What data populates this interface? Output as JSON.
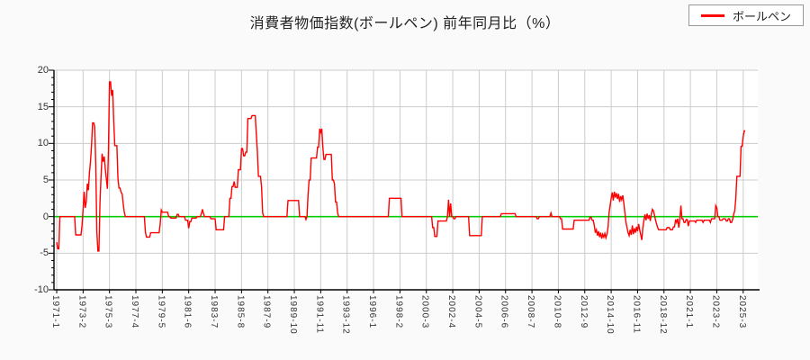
{
  "header": {
    "title": "消費者物価指数(ボールペン) 前年同月比（%）"
  },
  "legend": {
    "label": "ボールペン",
    "line_color": "#ff0000"
  },
  "colors": {
    "series_line": "#ff0000",
    "zero_line": "#00cc00",
    "grid": "#cccccc",
    "axis": "#000000",
    "plot_background": "#ffffff",
    "page_background": "#fafafa"
  },
  "chart_data": {
    "type": "line",
    "title": "消費者物価指数(ボールペン) 前年同月比（%）",
    "series_name": "ボールペン",
    "unit": "%",
    "x_start": "1971-1",
    "x_end": "2025-5",
    "x_tick_interval_months": 25,
    "x_tick_labels": [
      "1971-1",
      "1973-2",
      "1975-3",
      "1977-4",
      "1979-5",
      "1981-6",
      "1983-7",
      "1985-8",
      "1987-9",
      "1989-10",
      "1991-11",
      "1993-12",
      "1996-1",
      "1998-2",
      "2000-3",
      "2002-4",
      "2004-5",
      "2006-6",
      "2008-7",
      "2010-8",
      "2012-9",
      "2014-10",
      "2016-11",
      "2018-12",
      "2021-1",
      "2023-2",
      "2025-3"
    ],
    "ylim": [
      -10,
      20
    ],
    "y_ticks": [
      -10,
      -5,
      0,
      5,
      10,
      15,
      20
    ],
    "y_minor_tick_step": 1,
    "grid": true,
    "legend_position": "top-right",
    "value_encoding": "step_changes: each [month, value] sets the series value from that month until the next entry",
    "changes": [
      [
        "1971-1",
        -3.5
      ],
      [
        "1971-2",
        -4.4
      ],
      [
        "1971-4",
        0
      ],
      [
        "1972-7",
        -2.5
      ],
      [
        "1973-1",
        -1.2
      ],
      [
        "1973-2",
        1.0
      ],
      [
        "1973-3",
        3.4
      ],
      [
        "1973-4",
        1.2
      ],
      [
        "1973-5",
        2.0
      ],
      [
        "1973-6",
        4.5
      ],
      [
        "1973-7",
        3.6
      ],
      [
        "1973-8",
        6.0
      ],
      [
        "1973-9",
        7.5
      ],
      [
        "1973-10",
        9.8
      ],
      [
        "1973-11",
        12.8
      ],
      [
        "1974-1",
        12.3
      ],
      [
        "1974-2",
        7.0
      ],
      [
        "1974-3",
        -2.0
      ],
      [
        "1974-4",
        -4.7
      ],
      [
        "1974-6",
        2.0
      ],
      [
        "1974-7",
        5.5
      ],
      [
        "1974-8",
        8.6
      ],
      [
        "1974-9",
        7.5
      ],
      [
        "1974-10",
        8.2
      ],
      [
        "1974-11",
        6.5
      ],
      [
        "1974-12",
        5.2
      ],
      [
        "1975-1",
        3.8
      ],
      [
        "1975-2",
        9.0
      ],
      [
        "1975-3",
        18.4
      ],
      [
        "1975-5",
        16.5
      ],
      [
        "1975-6",
        17.3
      ],
      [
        "1975-7",
        13.0
      ],
      [
        "1975-8",
        9.7
      ],
      [
        "1975-11",
        5.2
      ],
      [
        "1975-12",
        3.9
      ],
      [
        "1976-2",
        3.3
      ],
      [
        "1976-3",
        3.1
      ],
      [
        "1976-4",
        1.7
      ],
      [
        "1976-5",
        0.6
      ],
      [
        "1976-6",
        0
      ],
      [
        "1978-1",
        -2.1
      ],
      [
        "1978-2",
        -2.8
      ],
      [
        "1978-6",
        -2.2
      ],
      [
        "1979-3",
        -1.0
      ],
      [
        "1979-4",
        0.9
      ],
      [
        "1979-5",
        0.6
      ],
      [
        "1979-11",
        0
      ],
      [
        "1980-1",
        -0.2
      ],
      [
        "1980-7",
        0.3
      ],
      [
        "1980-9",
        0
      ],
      [
        "1981-3",
        -0.5
      ],
      [
        "1981-6",
        -1.6
      ],
      [
        "1981-7",
        -0.7
      ],
      [
        "1981-9",
        -0.2
      ],
      [
        "1982-2",
        0
      ],
      [
        "1982-6",
        0.4
      ],
      [
        "1982-7",
        1.0
      ],
      [
        "1982-8",
        0.4
      ],
      [
        "1982-9",
        0
      ],
      [
        "1983-3",
        -0.3
      ],
      [
        "1983-8",
        -1.8
      ],
      [
        "1984-4",
        0
      ],
      [
        "1984-9",
        2.5
      ],
      [
        "1984-11",
        4.1
      ],
      [
        "1985-1",
        4.8
      ],
      [
        "1985-2",
        4.0
      ],
      [
        "1985-5",
        6.4
      ],
      [
        "1985-8",
        9.3
      ],
      [
        "1985-10",
        8.3
      ],
      [
        "1985-12",
        8.8
      ],
      [
        "1986-2",
        13.4
      ],
      [
        "1986-6",
        13.8
      ],
      [
        "1986-10",
        11.3
      ],
      [
        "1986-11",
        8.9
      ],
      [
        "1986-12",
        5.5
      ],
      [
        "1987-3",
        4.0
      ],
      [
        "1987-4",
        0.5
      ],
      [
        "1987-5",
        0
      ],
      [
        "1989-4",
        2.2
      ],
      [
        "1990-3",
        0
      ],
      [
        "1990-9",
        -0.4
      ],
      [
        "1990-10",
        0
      ],
      [
        "1990-11",
        3.0
      ],
      [
        "1990-12",
        5.0
      ],
      [
        "1991-2",
        8.0
      ],
      [
        "1991-8",
        9.5
      ],
      [
        "1991-10",
        12.0
      ],
      [
        "1991-11",
        11.5
      ],
      [
        "1991-12",
        12.0
      ],
      [
        "1992-1",
        9.5
      ],
      [
        "1992-2",
        7.8
      ],
      [
        "1992-4",
        8.5
      ],
      [
        "1992-10",
        5.0
      ],
      [
        "1992-12",
        4.5
      ],
      [
        "1993-1",
        2.0
      ],
      [
        "1993-3",
        0.5
      ],
      [
        "1993-4",
        0
      ],
      [
        "1997-4",
        2.5
      ],
      [
        "1998-4",
        0
      ],
      [
        "2000-9",
        -1.5
      ],
      [
        "2000-11",
        -2.7
      ],
      [
        "2001-2",
        -0.6
      ],
      [
        "2001-11",
        0
      ],
      [
        "2001-12",
        2.3
      ],
      [
        "2002-1",
        0
      ],
      [
        "2002-2",
        1.8
      ],
      [
        "2002-3",
        0
      ],
      [
        "2002-5",
        -0.3
      ],
      [
        "2002-7",
        0
      ],
      [
        "2003-8",
        -2.6
      ],
      [
        "2004-8",
        0
      ],
      [
        "2006-2",
        0.4
      ],
      [
        "2007-4",
        0
      ],
      [
        "2008-12",
        -0.3
      ],
      [
        "2009-2",
        0
      ],
      [
        "2010-1",
        0.5
      ],
      [
        "2010-2",
        0
      ],
      [
        "2010-10",
        -0.3
      ],
      [
        "2010-12",
        -1.7
      ],
      [
        "2011-11",
        -0.5
      ],
      [
        "2013-2",
        -0.1
      ],
      [
        "2013-4",
        -0.5
      ],
      [
        "2013-6",
        -1.2
      ],
      [
        "2013-7",
        -2.2
      ],
      [
        "2013-8",
        -1.8
      ],
      [
        "2013-9",
        -2.6
      ],
      [
        "2013-10",
        -2.0
      ],
      [
        "2013-11",
        -2.8
      ],
      [
        "2013-12",
        -2.2
      ],
      [
        "2014-1",
        -3.0
      ],
      [
        "2014-2",
        -2.4
      ],
      [
        "2014-3",
        -2.8
      ],
      [
        "2014-4",
        -2.3
      ],
      [
        "2014-5",
        -2.9
      ],
      [
        "2014-6",
        -2.4
      ],
      [
        "2014-7",
        -1.5
      ],
      [
        "2014-8",
        0.5
      ],
      [
        "2014-9",
        1.5
      ],
      [
        "2014-10",
        2.5
      ],
      [
        "2014-11",
        3.3
      ],
      [
        "2014-12",
        2.2
      ],
      [
        "2015-1",
        3.4
      ],
      [
        "2015-2",
        2.6
      ],
      [
        "2015-3",
        3.2
      ],
      [
        "2015-4",
        2.4
      ],
      [
        "2015-5",
        3.1
      ],
      [
        "2015-6",
        2.0
      ],
      [
        "2015-7",
        2.8
      ],
      [
        "2015-8",
        2.3
      ],
      [
        "2015-9",
        2.9
      ],
      [
        "2015-10",
        1.8
      ],
      [
        "2015-11",
        0.5
      ],
      [
        "2015-12",
        -0.8
      ],
      [
        "2016-1",
        -1.5
      ],
      [
        "2016-2",
        -2.2
      ],
      [
        "2016-3",
        -2.6
      ],
      [
        "2016-4",
        -1.8
      ],
      [
        "2016-5",
        -2.5
      ],
      [
        "2016-6",
        -1.2
      ],
      [
        "2016-7",
        -2.4
      ],
      [
        "2016-8",
        -1.6
      ],
      [
        "2016-9",
        -2.2
      ],
      [
        "2016-10",
        -1.4
      ],
      [
        "2016-11",
        -2.0
      ],
      [
        "2016-12",
        -1.0
      ],
      [
        "2017-1",
        -1.8
      ],
      [
        "2017-2",
        -2.5
      ],
      [
        "2017-3",
        -3.2
      ],
      [
        "2017-4",
        -1.5
      ],
      [
        "2017-5",
        -0.5
      ],
      [
        "2017-6",
        0.3
      ],
      [
        "2017-7",
        -0.5
      ],
      [
        "2017-8",
        0.4
      ],
      [
        "2017-9",
        -0.3
      ],
      [
        "2017-10",
        0.2
      ],
      [
        "2017-11",
        -0.6
      ],
      [
        "2017-12",
        0.3
      ],
      [
        "2018-1",
        1.0
      ],
      [
        "2018-2",
        0.8
      ],
      [
        "2018-3",
        0.2
      ],
      [
        "2018-4",
        -0.5
      ],
      [
        "2018-5",
        -1.0
      ],
      [
        "2018-6",
        -1.5
      ],
      [
        "2018-7",
        -1.8
      ],
      [
        "2019-3",
        -1.5
      ],
      [
        "2019-6",
        -1.8
      ],
      [
        "2019-9",
        -1.4
      ],
      [
        "2019-11",
        -0.4
      ],
      [
        "2019-12",
        -0.8
      ],
      [
        "2020-1",
        -0.3
      ],
      [
        "2020-2",
        -1.5
      ],
      [
        "2020-3",
        -0.5
      ],
      [
        "2020-4",
        1.5
      ],
      [
        "2020-5",
        -0.3
      ],
      [
        "2020-7",
        -0.8
      ],
      [
        "2020-9",
        -0.4
      ],
      [
        "2020-11",
        -1.3
      ],
      [
        "2020-12",
        -0.6
      ],
      [
        "2021-6",
        -0.8
      ],
      [
        "2021-7",
        -0.5
      ],
      [
        "2022-1",
        -0.8
      ],
      [
        "2022-2",
        -0.5
      ],
      [
        "2022-8",
        -0.8
      ],
      [
        "2022-9",
        -0.3
      ],
      [
        "2023-1",
        1.5
      ],
      [
        "2023-2",
        1.2
      ],
      [
        "2023-3",
        0
      ],
      [
        "2023-5",
        -0.5
      ],
      [
        "2023-8",
        -0.3
      ],
      [
        "2023-11",
        -0.6
      ],
      [
        "2024-1",
        -0.3
      ],
      [
        "2024-3",
        -0.8
      ],
      [
        "2024-5",
        -0.4
      ],
      [
        "2024-6",
        0.3
      ],
      [
        "2024-7",
        0.8
      ],
      [
        "2024-8",
        2.5
      ],
      [
        "2024-9",
        5.5
      ],
      [
        "2025-1",
        9.6
      ],
      [
        "2025-3",
        10.9
      ],
      [
        "2025-4",
        11.7
      ]
    ]
  }
}
